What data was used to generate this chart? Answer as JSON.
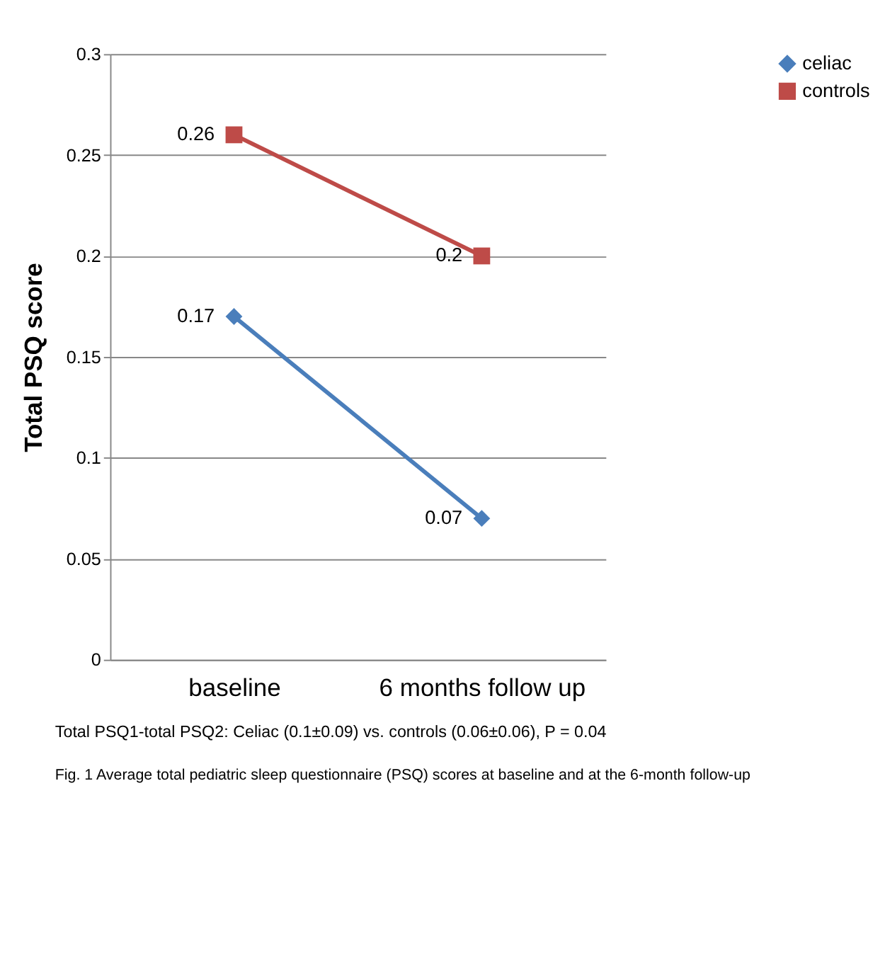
{
  "chart_data": {
    "type": "line",
    "ylabel": "Total PSQ score",
    "categories": [
      "baseline",
      "6 months follow up"
    ],
    "series": [
      {
        "name": "celiac",
        "color": "#4a7ebb",
        "values": [
          0.17,
          0.07
        ],
        "marker": "diamond"
      },
      {
        "name": "controls",
        "color": "#be4b48",
        "values": [
          0.26,
          0.2
        ],
        "marker": "square"
      }
    ],
    "ylim": [
      0,
      0.3
    ],
    "yticks": [
      0,
      0.05,
      0.1,
      0.15,
      0.2,
      0.25,
      0.3
    ],
    "grid": "y",
    "legend": "top right",
    "data_labels": true,
    "annotations": [
      "Total PSQ1-total PSQ2: Celiac (0.1±0.09) vs. controls (0.06±0.06), P = 0.04",
      "Fig. 1 Average total pediatric sleep questionnaire (PSQ) scores at baseline and at the 6-month follow-up"
    ]
  }
}
